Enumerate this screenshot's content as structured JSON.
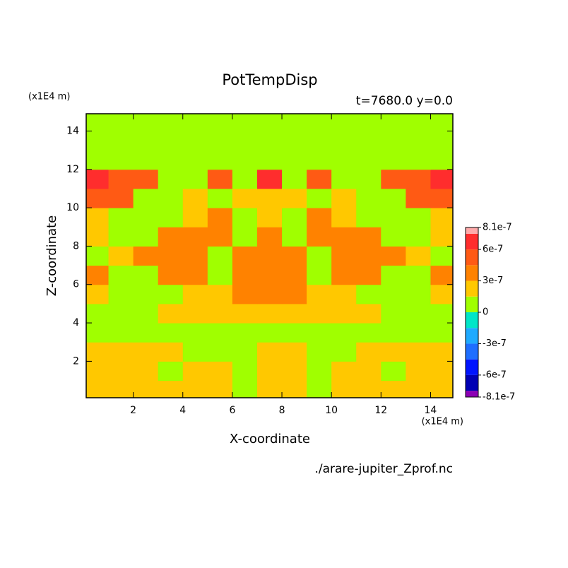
{
  "chart_data": {
    "type": "contour",
    "title": "PotTempDisp",
    "subtitle": "t=7680.0 y=0.0",
    "xlabel": "X-coordinate",
    "ylabel": "Z-coordinate",
    "xunit": "(x1E4 m)",
    "yunit": "(x1E4 m)",
    "source": "./arare-jupiter_Zprof.nc",
    "xlim": [
      0.1,
      14.9
    ],
    "ylim": [
      0.1,
      14.9
    ],
    "xticks": [
      2,
      4,
      6,
      8,
      10,
      12,
      14
    ],
    "yticks": [
      2,
      4,
      6,
      8,
      10,
      12,
      14
    ],
    "x": [
      0.5,
      1.5,
      2.5,
      3.5,
      4.5,
      5.5,
      6.5,
      7.5,
      8.5,
      9.5,
      10.5,
      11.5,
      12.5,
      13.5,
      14.5
    ],
    "y": [
      0.5,
      1.5,
      2.5,
      3.5,
      4.5,
      5.5,
      6.5,
      7.5,
      8.5,
      9.5,
      10.5,
      11.5,
      12.5,
      13.5,
      14.5
    ],
    "z": [
      [
        2.2e-07,
        2.2e-07,
        2.2e-07,
        2.2e-07,
        2.2e-07,
        2.2e-07,
        7e-08,
        2.2e-07,
        2.2e-07,
        7e-08,
        2.2e-07,
        2.2e-07,
        2.2e-07,
        2.2e-07,
        2.2e-07
      ],
      [
        2.2e-07,
        2.2e-07,
        2.2e-07,
        7e-08,
        2.2e-07,
        2.2e-07,
        7e-08,
        2.2e-07,
        2.2e-07,
        7e-08,
        2.2e-07,
        2.2e-07,
        7e-08,
        2.2e-07,
        2.2e-07
      ],
      [
        2.2e-07,
        2.2e-07,
        2.2e-07,
        2.2e-07,
        7e-08,
        7e-08,
        7e-08,
        2.2e-07,
        2.2e-07,
        7e-08,
        7e-08,
        2.2e-07,
        2.2e-07,
        2.2e-07,
        2.2e-07
      ],
      [
        7e-08,
        7e-08,
        7e-08,
        7e-08,
        7e-08,
        7e-08,
        7e-08,
        7e-08,
        7e-08,
        7e-08,
        7e-08,
        7e-08,
        7e-08,
        7e-08,
        7e-08
      ],
      [
        7e-08,
        7e-08,
        7e-08,
        2.2e-07,
        2.2e-07,
        2.2e-07,
        2.2e-07,
        2.2e-07,
        2.2e-07,
        2.2e-07,
        2.2e-07,
        2.2e-07,
        7e-08,
        7e-08,
        7e-08
      ],
      [
        2.2e-07,
        7e-08,
        7e-08,
        7e-08,
        2.2e-07,
        2.2e-07,
        3.7e-07,
        3.7e-07,
        3.7e-07,
        2.2e-07,
        2.2e-07,
        7e-08,
        7e-08,
        7e-08,
        2.2e-07
      ],
      [
        3.7e-07,
        7e-08,
        7e-08,
        3.7e-07,
        3.7e-07,
        7e-08,
        3.7e-07,
        3.7e-07,
        3.7e-07,
        7e-08,
        3.7e-07,
        3.7e-07,
        7e-08,
        7e-08,
        3.7e-07
      ],
      [
        7e-08,
        2.2e-07,
        3.7e-07,
        3.7e-07,
        3.7e-07,
        7e-08,
        3.7e-07,
        3.7e-07,
        3.7e-07,
        7e-08,
        3.7e-07,
        3.7e-07,
        3.7e-07,
        2.2e-07,
        7e-08
      ],
      [
        2.2e-07,
        7e-08,
        7e-08,
        3.7e-07,
        3.7e-07,
        3.7e-07,
        7e-08,
        3.7e-07,
        7e-08,
        3.7e-07,
        3.7e-07,
        3.7e-07,
        7e-08,
        7e-08,
        2.2e-07
      ],
      [
        2.2e-07,
        7e-08,
        7e-08,
        7e-08,
        2.2e-07,
        3.7e-07,
        7e-08,
        2.2e-07,
        7e-08,
        3.7e-07,
        2.2e-07,
        7e-08,
        7e-08,
        7e-08,
        2.2e-07
      ],
      [
        5.2e-07,
        5.2e-07,
        7e-08,
        7e-08,
        2.2e-07,
        7e-08,
        2.2e-07,
        2.2e-07,
        2.2e-07,
        7e-08,
        2.2e-07,
        7e-08,
        7e-08,
        5.2e-07,
        5.2e-07
      ],
      [
        6.7e-07,
        5.2e-07,
        5.2e-07,
        7e-08,
        7e-08,
        5.2e-07,
        7e-08,
        6.7e-07,
        7e-08,
        5.2e-07,
        7e-08,
        7e-08,
        5.2e-07,
        5.2e-07,
        6.7e-07
      ],
      [
        7e-08,
        7e-08,
        7e-08,
        7e-08,
        7e-08,
        7e-08,
        7e-08,
        7e-08,
        7e-08,
        7e-08,
        7e-08,
        7e-08,
        7e-08,
        7e-08,
        7e-08
      ],
      [
        7e-08,
        7e-08,
        7e-08,
        7e-08,
        7e-08,
        7e-08,
        7e-08,
        7e-08,
        7e-08,
        7e-08,
        7e-08,
        7e-08,
        7e-08,
        7e-08,
        7e-08
      ],
      [
        7e-08,
        7e-08,
        7e-08,
        7e-08,
        7e-08,
        7e-08,
        7e-08,
        7e-08,
        7e-08,
        7e-08,
        7e-08,
        7e-08,
        7e-08,
        7e-08,
        7e-08
      ]
    ],
    "colorbar": {
      "levels": [
        -8.1e-07,
        -7.5e-07,
        -6e-07,
        -4.5e-07,
        -3e-07,
        -1.5e-07,
        0,
        1.5e-07,
        3e-07,
        4.5e-07,
        6e-07,
        7.5e-07,
        8.1e-07
      ],
      "colors": [
        "#8c00b4",
        "#0000b4",
        "#0014ff",
        "#1e6eff",
        "#1eaaff",
        "#00e6c8",
        "#a0ff00",
        "#ffc800",
        "#ff8200",
        "#ff5a14",
        "#ff2d2d",
        "#ffaaaa"
      ],
      "ticks": [
        {
          "value": 8.1e-07,
          "label": "8.1e-7"
        },
        {
          "value": 6e-07,
          "label": "6e-7"
        },
        {
          "value": 3e-07,
          "label": "3e-7"
        },
        0,
        {
          "value": -3e-07,
          "label": "-3e-7"
        },
        {
          "value": -6e-07,
          "label": "-6e-7"
        },
        {
          "value": -8.1e-07,
          "label": "-8.1e-7"
        }
      ]
    }
  }
}
